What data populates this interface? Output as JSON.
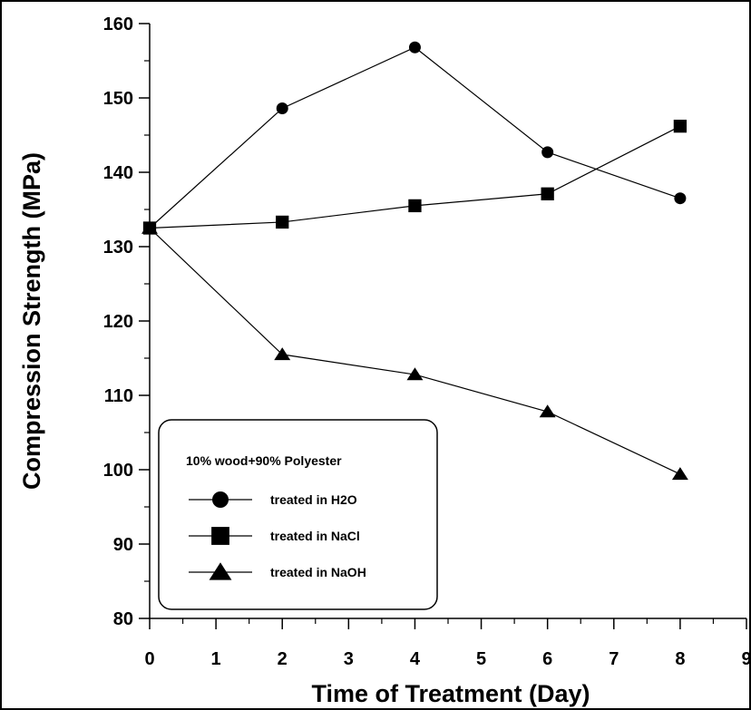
{
  "chart_data": {
    "type": "line",
    "xlabel": "Time of Treatment (Day)",
    "ylabel": "Compression Strength (MPa)",
    "xlim": [
      0,
      9
    ],
    "ylim": [
      80,
      160
    ],
    "x_ticks": [
      0,
      1,
      2,
      3,
      4,
      5,
      6,
      7,
      8,
      9
    ],
    "y_ticks": [
      80,
      90,
      100,
      110,
      120,
      130,
      140,
      150,
      160
    ],
    "x_minor_step": 0.5,
    "y_minor_step": 5,
    "grid": false,
    "legend": {
      "title": "10% wood+90% Polyester",
      "placement": "bottom-left"
    },
    "series": [
      {
        "name": "treated in H2O",
        "marker": "circle",
        "x": [
          0,
          2,
          4,
          6,
          8
        ],
        "y": [
          132.5,
          148.6,
          156.8,
          142.7,
          136.5
        ]
      },
      {
        "name": "treated in NaCl",
        "marker": "square",
        "x": [
          0,
          2,
          4,
          6,
          8
        ],
        "y": [
          132.5,
          133.3,
          135.5,
          137.1,
          146.2
        ]
      },
      {
        "name": "treated in NaOH",
        "marker": "triangle",
        "x": [
          0,
          2,
          4,
          6,
          8
        ],
        "y": [
          132.5,
          115.5,
          112.8,
          107.8,
          99.4
        ]
      }
    ]
  }
}
